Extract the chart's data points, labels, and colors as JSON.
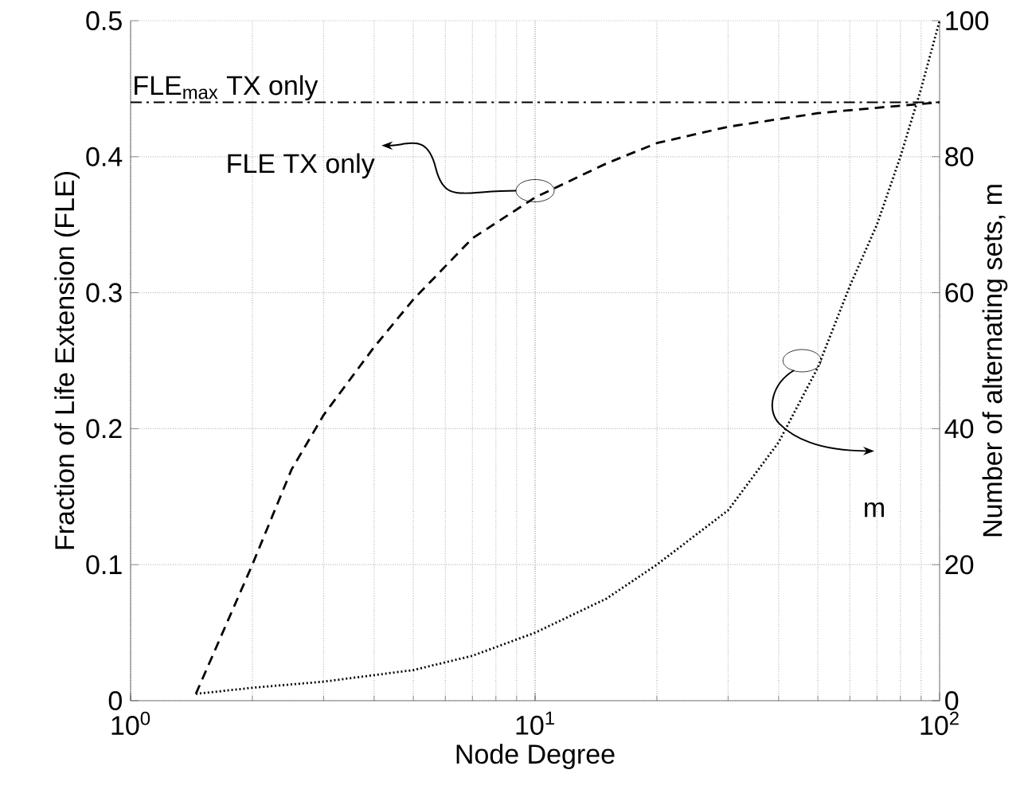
{
  "chart_data": {
    "type": "line",
    "xlabel": "Node Degree",
    "ylabel": "Fraction of Life Extension (FLE)",
    "y2label": "Number of alternating sets, m",
    "log": "x",
    "xlim": [
      1,
      100
    ],
    "xticks": [
      {
        "value": 1,
        "label": "10$^{0}$"
      },
      {
        "value": 10,
        "label": "10$^{1}$"
      },
      {
        "value": 100,
        "label": "10$^{2}$"
      }
    ],
    "ylim": [
      0,
      0.5
    ],
    "yticks": [
      0,
      0.1,
      0.2,
      0.3,
      0.4,
      0.5
    ],
    "y2lim": [
      0,
      100
    ],
    "y2ticks": [
      0,
      20,
      40,
      60,
      80,
      100
    ],
    "grid": true,
    "legend": false,
    "series": [
      {
        "color": "#000000",
        "line_style": "dashed",
        "x": [
          1.45,
          2,
          2.5,
          3,
          4,
          5,
          7,
          10,
          15,
          20,
          30,
          50,
          70,
          100
        ],
        "values": [
          0.005,
          0.1,
          0.17,
          0.21,
          0.26,
          0.295,
          0.34,
          0.37,
          0.395,
          0.41,
          0.422,
          0.432,
          0.436,
          0.44
        ]
      },
      {
        "color": "#000000",
        "line_style": "dotted",
        "axis": "y2",
        "x": [
          1.45,
          2,
          3,
          5,
          7,
          10,
          15,
          20,
          30,
          40,
          50,
          60,
          70,
          80,
          90,
          100
        ],
        "values": [
          1,
          1.9,
          2.8,
          4.5,
          6.6,
          10,
          15,
          20,
          28,
          38,
          49,
          61,
          70,
          80,
          90,
          100
        ]
      }
    ],
    "ref_lines": [
      {
        "axis": "y",
        "value": 0.44,
        "label": "FLE$_{max}$ TX only",
        "color": "#000000",
        "line_style": "dashdot"
      }
    ],
    "annotations": [
      "FLE TX only",
      "m"
    ]
  }
}
